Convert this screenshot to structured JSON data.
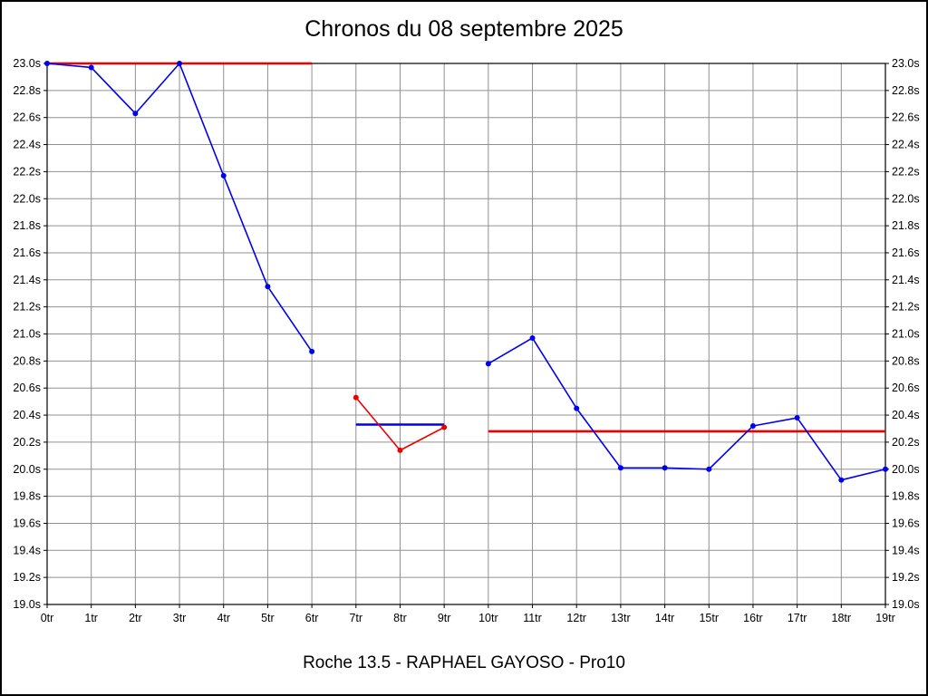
{
  "title": "Chronos du 08 septembre 2025",
  "footer": "Roche 13.5 - RAPHAEL GAYOSO - Pro10",
  "chart_data": {
    "type": "line",
    "title": "Chronos du 08 septembre 2025",
    "subtitle": "Roche 13.5 - RAPHAEL GAYOSO - Pro10",
    "xlabel": "",
    "ylabel": "",
    "x_tick_labels": [
      "0tr",
      "1tr",
      "2tr",
      "3tr",
      "4tr",
      "5tr",
      "6tr",
      "7tr",
      "8tr",
      "9tr",
      "10tr",
      "11tr",
      "12tr",
      "13tr",
      "14tr",
      "15tr",
      "16tr",
      "17tr",
      "18tr",
      "19tr"
    ],
    "ylim": [
      19.0,
      23.0
    ],
    "y_tick_step": 0.2,
    "y_unit": "s",
    "grid": true,
    "legend": "none",
    "colors": {
      "lap_line": "#0000ee",
      "reference_line": "#ee0000",
      "grid": "#909090",
      "axis": "#000000"
    },
    "series": [
      {
        "name": "segment1-red-flat",
        "color": "#ee0000",
        "width": 2.6,
        "markers": false,
        "x": [
          0,
          6
        ],
        "values": [
          23.0,
          23.0
        ]
      },
      {
        "name": "segment1-blue-laps",
        "color": "#0000ee",
        "width": 1.6,
        "markers": true,
        "x": [
          0,
          1,
          2,
          3,
          4,
          5,
          6
        ],
        "values": [
          23.0,
          22.97,
          22.63,
          23.0,
          22.17,
          21.35,
          20.87
        ]
      },
      {
        "name": "segment2-blue-flat",
        "color": "#0000ee",
        "width": 2.6,
        "markers": false,
        "x": [
          7,
          9
        ],
        "values": [
          20.33,
          20.33
        ]
      },
      {
        "name": "segment2-red-laps",
        "color": "#ee0000",
        "width": 1.6,
        "markers": true,
        "x": [
          7,
          8,
          9
        ],
        "values": [
          20.53,
          20.14,
          20.31
        ]
      },
      {
        "name": "segment3-red-flat",
        "color": "#ee0000",
        "width": 2.6,
        "markers": false,
        "x": [
          10,
          19
        ],
        "values": [
          20.28,
          20.28
        ]
      },
      {
        "name": "segment3-blue-laps",
        "color": "#0000ee",
        "width": 1.6,
        "markers": true,
        "x": [
          10,
          11,
          12,
          13,
          14,
          15,
          16,
          17,
          18,
          19
        ],
        "values": [
          20.78,
          20.97,
          20.45,
          20.01,
          20.01,
          20.0,
          20.32,
          20.38,
          19.92,
          20.0
        ]
      }
    ]
  }
}
